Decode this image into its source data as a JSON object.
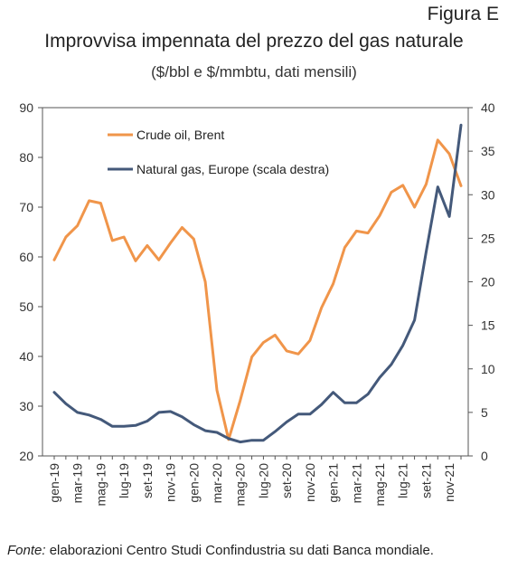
{
  "figure_label": "Figura E",
  "source_prefix": "Fonte:",
  "source_text": " elaborazioni Centro Studi Confindustria su dati Banca mondiale.",
  "chart_data": {
    "type": "line",
    "title": "Improvvisa impennata del prezzo del gas naturale",
    "subtitle": "($/bbl e $/mmbtu, dati mensili)",
    "x": [
      "gen-19",
      "feb-19",
      "mar-19",
      "apr-19",
      "mag-19",
      "giu-19",
      "lug-19",
      "ago-19",
      "set-19",
      "ott-19",
      "nov-19",
      "dic-19",
      "gen-20",
      "feb-20",
      "mar-20",
      "apr-20",
      "mag-20",
      "giu-20",
      "lug-20",
      "ago-20",
      "set-20",
      "ott-20",
      "nov-20",
      "dic-20",
      "gen-21",
      "feb-21",
      "mar-21",
      "apr-21",
      "mag-21",
      "giu-21",
      "lug-21",
      "ago-21",
      "set-21",
      "ott-21",
      "nov-21",
      "dic-21"
    ],
    "x_tick_labels": [
      "gen-19",
      "mar-19",
      "mag-19",
      "lug-19",
      "set-19",
      "nov-19",
      "gen-20",
      "mar-20",
      "mag-20",
      "lug-20",
      "set-20",
      "nov-20",
      "gen-21",
      "mar-21",
      "mag-21",
      "lug-21",
      "set-21",
      "nov-21"
    ],
    "ylim_left": [
      20,
      90
    ],
    "yticks_left": [
      20,
      30,
      40,
      50,
      60,
      70,
      80,
      90
    ],
    "ylim_right": [
      0,
      40
    ],
    "yticks_right": [
      0,
      5,
      10,
      15,
      20,
      25,
      30,
      35,
      40
    ],
    "grid": false,
    "legend_position": "top-left",
    "series": [
      {
        "name": "Crude oil, Brent",
        "axis": "left",
        "color": "#F0954A",
        "values": [
          59.4,
          64.0,
          66.3,
          71.3,
          70.8,
          63.3,
          64.0,
          59.2,
          62.3,
          59.4,
          62.8,
          65.9,
          63.6,
          55.0,
          33.2,
          23.3,
          31.1,
          39.9,
          42.8,
          44.3,
          41.1,
          40.5,
          43.2,
          49.8,
          54.6,
          61.9,
          65.2,
          64.8,
          68.3,
          73.0,
          74.4,
          70.0,
          74.6,
          83.5,
          80.7,
          74.3
        ]
      },
      {
        "name": "Natural gas, Europe (scala destra)",
        "axis": "right",
        "color": "#44597A",
        "values": [
          7.3,
          6.0,
          5.0,
          4.7,
          4.2,
          3.4,
          3.4,
          3.5,
          4.0,
          5.0,
          5.1,
          4.5,
          3.6,
          2.9,
          2.7,
          2.0,
          1.6,
          1.8,
          1.8,
          2.8,
          3.9,
          4.8,
          4.8,
          5.9,
          7.3,
          6.1,
          6.1,
          7.1,
          9.0,
          10.5,
          12.7,
          15.6,
          23.4,
          30.9,
          27.5,
          38.0
        ]
      }
    ]
  }
}
